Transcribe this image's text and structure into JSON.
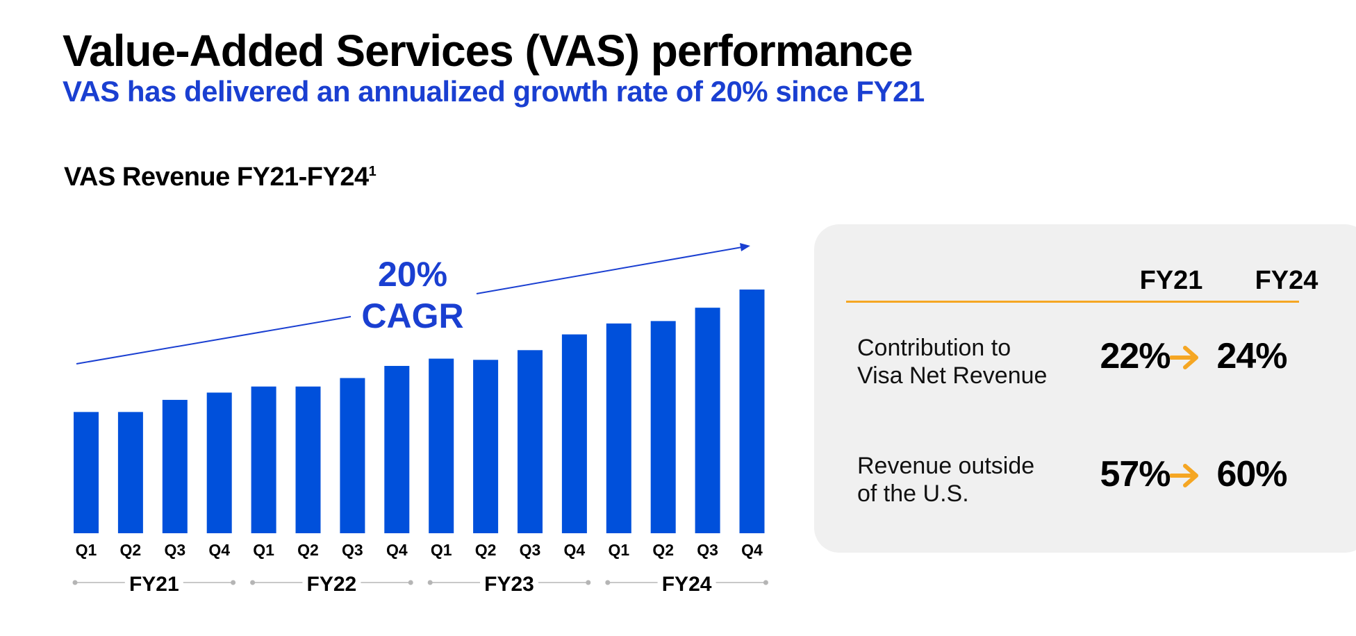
{
  "header": {
    "title": "Value-Added Services (VAS) performance",
    "subtitle": "VAS has delivered an annualized growth rate of 20% since FY21"
  },
  "colors": {
    "bar": "#0050db",
    "accent_text": "#1a3fd1",
    "panel_rule": "#f5a623",
    "arrow": "#f5a623",
    "panel_bg": "#f0f0f0",
    "year_rule": "#b5b5b5"
  },
  "chart_data": {
    "type": "bar",
    "title": "VAS Revenue FY21-FY24",
    "title_footnote": "1",
    "categories": [
      "Q1",
      "Q2",
      "Q3",
      "Q4",
      "Q1",
      "Q2",
      "Q3",
      "Q4",
      "Q1",
      "Q2",
      "Q3",
      "Q4",
      "Q1",
      "Q2",
      "Q3",
      "Q4"
    ],
    "groups": [
      {
        "label": "FY21"
      },
      {
        "label": "FY22"
      },
      {
        "label": "FY23"
      },
      {
        "label": "FY24"
      }
    ],
    "values": [
      1.0,
      1.0,
      1.1,
      1.16,
      1.21,
      1.21,
      1.28,
      1.38,
      1.44,
      1.43,
      1.51,
      1.64,
      1.73,
      1.75,
      1.86,
      2.01
    ],
    "value_axis": "none (relative bar heights, no tick labels shown)",
    "annotation": {
      "line1": "20%",
      "line2": "CAGR"
    },
    "grid": false,
    "legend": "none"
  },
  "panel": {
    "col_from": "FY21",
    "col_to": "FY24",
    "rows": [
      {
        "label_line1": "Contribution to",
        "label_line2": "Visa Net Revenue",
        "from": "22%",
        "to": "24%"
      },
      {
        "label_line1": "Revenue outside",
        "label_line2": "of the U.S.",
        "from": "57%",
        "to": "60%"
      }
    ]
  }
}
